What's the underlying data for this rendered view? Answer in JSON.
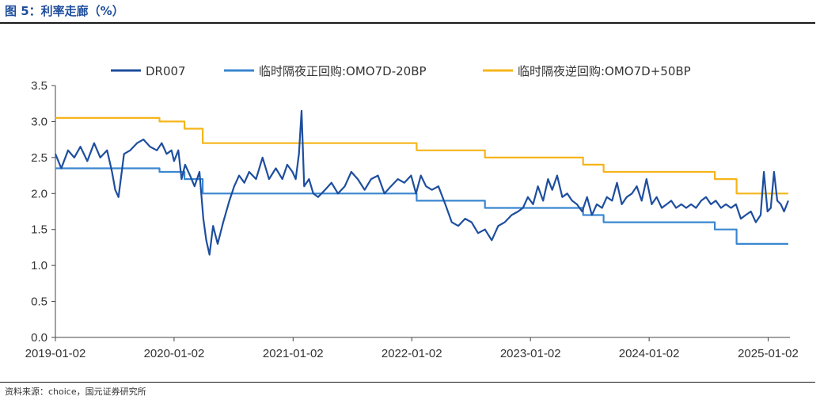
{
  "header": {
    "title": "图 5：利率走廊（%）"
  },
  "footer": {
    "source": "资料来源：choice，国元证券研究所"
  },
  "colors": {
    "dr007": "#1e4e9e",
    "lower": "#3a87d0",
    "upper": "#f5b51a",
    "axis": "#444444"
  },
  "chart_data": {
    "type": "line",
    "title": "",
    "xlabel": "",
    "ylabel": "",
    "xlim": [
      "2019-01-02",
      "2025-03-10"
    ],
    "ylim": [
      0.0,
      3.5
    ],
    "y_ticks": [
      "0.0",
      "0.5",
      "1.0",
      "1.5",
      "2.0",
      "2.5",
      "3.0",
      "3.5"
    ],
    "x_ticks": [
      "2019-01-02",
      "2020-01-02",
      "2021-01-02",
      "2022-01-02",
      "2023-01-02",
      "2024-01-02",
      "2025-01-02"
    ],
    "grid": false,
    "legend_position": "top",
    "series": [
      {
        "name": "DR007",
        "points": [
          [
            "2019-01-02",
            2.55
          ],
          [
            "2019-01-20",
            2.35
          ],
          [
            "2019-02-10",
            2.6
          ],
          [
            "2019-03-01",
            2.5
          ],
          [
            "2019-03-20",
            2.65
          ],
          [
            "2019-04-10",
            2.45
          ],
          [
            "2019-05-01",
            2.7
          ],
          [
            "2019-05-20",
            2.5
          ],
          [
            "2019-06-10",
            2.6
          ],
          [
            "2019-06-25",
            2.3
          ],
          [
            "2019-07-05",
            2.05
          ],
          [
            "2019-07-15",
            1.95
          ],
          [
            "2019-08-01",
            2.55
          ],
          [
            "2019-08-20",
            2.6
          ],
          [
            "2019-09-10",
            2.7
          ],
          [
            "2019-09-30",
            2.75
          ],
          [
            "2019-10-20",
            2.65
          ],
          [
            "2019-11-10",
            2.6
          ],
          [
            "2019-11-25",
            2.7
          ],
          [
            "2019-12-10",
            2.55
          ],
          [
            "2019-12-25",
            2.6
          ],
          [
            "2020-01-02",
            2.45
          ],
          [
            "2020-01-15",
            2.6
          ],
          [
            "2020-01-25",
            2.2
          ],
          [
            "2020-02-05",
            2.4
          ],
          [
            "2020-02-20",
            2.25
          ],
          [
            "2020-03-05",
            2.1
          ],
          [
            "2020-03-20",
            2.3
          ],
          [
            "2020-04-01",
            1.65
          ],
          [
            "2020-04-10",
            1.35
          ],
          [
            "2020-04-20",
            1.15
          ],
          [
            "2020-05-01",
            1.55
          ],
          [
            "2020-05-15",
            1.3
          ],
          [
            "2020-06-01",
            1.6
          ],
          [
            "2020-06-20",
            1.9
          ],
          [
            "2020-07-05",
            2.1
          ],
          [
            "2020-07-20",
            2.25
          ],
          [
            "2020-08-05",
            2.15
          ],
          [
            "2020-08-20",
            2.3
          ],
          [
            "2020-09-10",
            2.2
          ],
          [
            "2020-09-30",
            2.5
          ],
          [
            "2020-10-20",
            2.2
          ],
          [
            "2020-11-10",
            2.35
          ],
          [
            "2020-11-30",
            2.2
          ],
          [
            "2020-12-15",
            2.4
          ],
          [
            "2020-12-31",
            2.3
          ],
          [
            "2021-01-10",
            2.2
          ],
          [
            "2021-01-20",
            2.55
          ],
          [
            "2021-01-28",
            3.15
          ],
          [
            "2021-02-05",
            2.1
          ],
          [
            "2021-02-20",
            2.2
          ],
          [
            "2021-03-05",
            2.0
          ],
          [
            "2021-03-20",
            1.95
          ],
          [
            "2021-04-10",
            2.05
          ],
          [
            "2021-04-30",
            2.15
          ],
          [
            "2021-05-20",
            2.0
          ],
          [
            "2021-06-10",
            2.1
          ],
          [
            "2021-06-30",
            2.3
          ],
          [
            "2021-07-20",
            2.2
          ],
          [
            "2021-08-10",
            2.05
          ],
          [
            "2021-08-30",
            2.2
          ],
          [
            "2021-09-20",
            2.25
          ],
          [
            "2021-10-10",
            2.0
          ],
          [
            "2021-10-30",
            2.1
          ],
          [
            "2021-11-20",
            2.2
          ],
          [
            "2021-12-10",
            2.15
          ],
          [
            "2021-12-31",
            2.25
          ],
          [
            "2022-01-15",
            2.0
          ],
          [
            "2022-01-30",
            2.25
          ],
          [
            "2022-02-15",
            2.1
          ],
          [
            "2022-03-05",
            2.05
          ],
          [
            "2022-03-25",
            2.1
          ],
          [
            "2022-04-15",
            1.85
          ],
          [
            "2022-05-05",
            1.6
          ],
          [
            "2022-05-25",
            1.55
          ],
          [
            "2022-06-15",
            1.65
          ],
          [
            "2022-07-05",
            1.6
          ],
          [
            "2022-07-25",
            1.45
          ],
          [
            "2022-08-15",
            1.5
          ],
          [
            "2022-09-05",
            1.35
          ],
          [
            "2022-09-25",
            1.55
          ],
          [
            "2022-10-15",
            1.6
          ],
          [
            "2022-11-05",
            1.7
          ],
          [
            "2022-11-25",
            1.75
          ],
          [
            "2022-12-10",
            1.8
          ],
          [
            "2022-12-25",
            1.95
          ],
          [
            "2023-01-10",
            1.85
          ],
          [
            "2023-01-25",
            2.1
          ],
          [
            "2023-02-10",
            1.9
          ],
          [
            "2023-02-25",
            2.2
          ],
          [
            "2023-03-10",
            2.05
          ],
          [
            "2023-03-25",
            2.25
          ],
          [
            "2023-04-10",
            1.95
          ],
          [
            "2023-04-25",
            2.0
          ],
          [
            "2023-05-10",
            1.9
          ],
          [
            "2023-05-25",
            1.85
          ],
          [
            "2023-06-10",
            1.75
          ],
          [
            "2023-06-25",
            1.95
          ],
          [
            "2023-07-10",
            1.7
          ],
          [
            "2023-07-25",
            1.85
          ],
          [
            "2023-08-10",
            1.8
          ],
          [
            "2023-08-25",
            1.95
          ],
          [
            "2023-09-10",
            1.9
          ],
          [
            "2023-09-25",
            2.15
          ],
          [
            "2023-10-10",
            1.85
          ],
          [
            "2023-10-25",
            1.95
          ],
          [
            "2023-11-10",
            2.0
          ],
          [
            "2023-11-25",
            2.1
          ],
          [
            "2023-12-10",
            1.9
          ],
          [
            "2023-12-25",
            2.2
          ],
          [
            "2024-01-10",
            1.85
          ],
          [
            "2024-01-25",
            1.95
          ],
          [
            "2024-02-10",
            1.8
          ],
          [
            "2024-02-25",
            1.85
          ],
          [
            "2024-03-10",
            1.9
          ],
          [
            "2024-03-25",
            1.8
          ],
          [
            "2024-04-10",
            1.85
          ],
          [
            "2024-04-25",
            1.8
          ],
          [
            "2024-05-10",
            1.85
          ],
          [
            "2024-05-25",
            1.8
          ],
          [
            "2024-06-10",
            1.9
          ],
          [
            "2024-06-25",
            1.95
          ],
          [
            "2024-07-10",
            1.85
          ],
          [
            "2024-07-25",
            1.9
          ],
          [
            "2024-08-10",
            1.8
          ],
          [
            "2024-08-25",
            1.85
          ],
          [
            "2024-09-10",
            1.8
          ],
          [
            "2024-09-25",
            1.85
          ],
          [
            "2024-10-10",
            1.65
          ],
          [
            "2024-10-25",
            1.7
          ],
          [
            "2024-11-10",
            1.75
          ],
          [
            "2024-11-25",
            1.6
          ],
          [
            "2024-12-10",
            1.7
          ],
          [
            "2024-12-20",
            2.3
          ],
          [
            "2024-12-31",
            1.75
          ],
          [
            "2025-01-10",
            1.8
          ],
          [
            "2025-01-20",
            2.3
          ],
          [
            "2025-01-30",
            1.9
          ],
          [
            "2025-02-10",
            1.85
          ],
          [
            "2025-02-20",
            1.75
          ],
          [
            "2025-03-05",
            1.9
          ]
        ]
      },
      {
        "name": "临时隔夜正回购:OMO7D-20BP",
        "points": [
          [
            "2019-01-02",
            2.35
          ],
          [
            "2019-11-18",
            2.35
          ],
          [
            "2019-11-18",
            2.3
          ],
          [
            "2020-02-03",
            2.3
          ],
          [
            "2020-02-03",
            2.2
          ],
          [
            "2020-03-30",
            2.2
          ],
          [
            "2020-03-30",
            2.0
          ],
          [
            "2022-01-17",
            2.0
          ],
          [
            "2022-01-17",
            1.9
          ],
          [
            "2022-08-15",
            1.9
          ],
          [
            "2022-08-15",
            1.8
          ],
          [
            "2023-06-13",
            1.8
          ],
          [
            "2023-06-13",
            1.7
          ],
          [
            "2023-08-15",
            1.7
          ],
          [
            "2023-08-15",
            1.6
          ],
          [
            "2024-07-22",
            1.6
          ],
          [
            "2024-07-22",
            1.5
          ],
          [
            "2024-09-27",
            1.5
          ],
          [
            "2024-09-27",
            1.3
          ],
          [
            "2025-03-05",
            1.3
          ]
        ]
      },
      {
        "name": "临时隔夜逆回购:OMO7D+50BP",
        "points": [
          [
            "2019-01-02",
            3.05
          ],
          [
            "2019-11-18",
            3.05
          ],
          [
            "2019-11-18",
            3.0
          ],
          [
            "2020-02-03",
            3.0
          ],
          [
            "2020-02-03",
            2.9
          ],
          [
            "2020-03-30",
            2.9
          ],
          [
            "2020-03-30",
            2.7
          ],
          [
            "2022-01-17",
            2.7
          ],
          [
            "2022-01-17",
            2.6
          ],
          [
            "2022-08-15",
            2.6
          ],
          [
            "2022-08-15",
            2.5
          ],
          [
            "2023-06-13",
            2.5
          ],
          [
            "2023-06-13",
            2.4
          ],
          [
            "2023-08-15",
            2.4
          ],
          [
            "2023-08-15",
            2.3
          ],
          [
            "2024-07-22",
            2.3
          ],
          [
            "2024-07-22",
            2.2
          ],
          [
            "2024-09-27",
            2.2
          ],
          [
            "2024-09-27",
            2.0
          ],
          [
            "2025-03-05",
            2.0
          ]
        ]
      }
    ]
  }
}
